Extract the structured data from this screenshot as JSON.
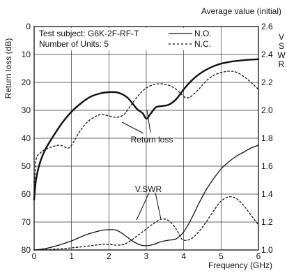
{
  "chart_data": {
    "type": "line",
    "title": "Average value (initial)",
    "xlabel": "Frequency (GHz)",
    "ylabel_left": "Return loss (dB)",
    "ylabel_right": "V.SWR",
    "xlim": [
      0,
      6
    ],
    "ylim_left": [
      80,
      0
    ],
    "ylim_right": [
      1.0,
      2.6
    ],
    "x_ticks": [
      "0",
      "1",
      "2",
      "3",
      "4",
      "5",
      "6"
    ],
    "y_left_ticks": [
      "0",
      "10",
      "20",
      "30",
      "40",
      "50",
      "60",
      "70",
      "80"
    ],
    "y_right_ticks": [
      "1.0",
      "1.2",
      "1.4",
      "1.6",
      "1.8",
      "2.0",
      "2.2",
      "2.4",
      "2.6"
    ],
    "grid": true,
    "info": {
      "subject": "Test subject: G6K-2F-RF-T",
      "units": "Number of Units: 5"
    },
    "legend": [
      {
        "label": "N.O.",
        "style": "solid"
      },
      {
        "label": "N.C.",
        "style": "dashed"
      }
    ],
    "annotations": {
      "return_loss": "Return loss",
      "vswr": "V.SWR"
    },
    "series": [
      {
        "group": "Return loss",
        "axis": "left",
        "contact": "N.O.",
        "x": [
          0,
          0.05,
          0.15,
          0.3,
          0.5,
          0.75,
          1.0,
          1.25,
          1.5,
          1.75,
          2.0,
          2.25,
          2.5,
          2.75,
          2.9,
          3.0,
          3.1,
          3.25,
          3.4,
          3.6,
          3.8,
          4.0,
          4.2,
          4.4,
          4.6,
          4.8,
          5.0,
          5.25,
          5.5,
          5.75,
          6.0
        ],
        "y": [
          62,
          55,
          49,
          44,
          39.5,
          34.5,
          30.5,
          27.5,
          25.2,
          24,
          23.5,
          23.7,
          25.5,
          29.5,
          31,
          33,
          31.5,
          29,
          28.5,
          28,
          26,
          22.5,
          19.5,
          17.2,
          15.5,
          14.2,
          13.3,
          12.6,
          12.2,
          11.9,
          11.7
        ]
      },
      {
        "group": "Return loss",
        "axis": "left",
        "contact": "N.C.",
        "x": [
          0,
          0.05,
          0.15,
          0.3,
          0.5,
          0.7,
          0.9,
          1.0,
          1.2,
          1.4,
          1.6,
          1.8,
          2.0,
          2.2,
          2.4,
          2.6,
          2.8,
          3.0,
          3.2,
          3.4,
          3.6,
          3.8,
          4.0,
          4.1,
          4.2,
          4.4,
          4.6,
          4.8,
          5.0,
          5.2,
          5.4,
          5.6,
          5.8,
          6.0
        ],
        "y": [
          60,
          48,
          45.5,
          44,
          43,
          42.5,
          43.5,
          42.5,
          38,
          34.5,
          32.5,
          31.5,
          32,
          32.5,
          31.5,
          28,
          24.5,
          22,
          20.8,
          20.5,
          21,
          22.5,
          25,
          25.5,
          25,
          22.5,
          19.5,
          17.5,
          16.5,
          16,
          16.3,
          17.8,
          20,
          22.5
        ]
      },
      {
        "group": "V.SWR",
        "axis": "right",
        "contact": "N.O.",
        "x": [
          0,
          0.3,
          0.6,
          1.0,
          1.4,
          1.8,
          2.0,
          2.2,
          2.4,
          2.6,
          2.8,
          3.0,
          3.2,
          3.4,
          3.6,
          3.8,
          4.0,
          4.2,
          4.4,
          4.6,
          4.8,
          5.0,
          5.2,
          5.4,
          5.6,
          5.8,
          6.0
        ],
        "y": [
          1.0,
          1.01,
          1.03,
          1.065,
          1.11,
          1.14,
          1.145,
          1.142,
          1.11,
          1.07,
          1.04,
          1.03,
          1.04,
          1.06,
          1.07,
          1.08,
          1.13,
          1.22,
          1.33,
          1.43,
          1.51,
          1.58,
          1.63,
          1.67,
          1.7,
          1.73,
          1.75
        ]
      },
      {
        "group": "V.SWR",
        "axis": "right",
        "contact": "N.C.",
        "x": [
          0,
          0.5,
          1.0,
          1.5,
          1.8,
          2.0,
          2.2,
          2.4,
          2.6,
          2.8,
          3.0,
          3.2,
          3.4,
          3.6,
          3.8,
          3.9,
          4.0,
          4.2,
          4.4,
          4.6,
          4.8,
          5.0,
          5.2,
          5.4,
          5.6,
          5.8,
          6.0
        ],
        "y": [
          1.0,
          1.005,
          1.015,
          1.03,
          1.04,
          1.04,
          1.035,
          1.04,
          1.07,
          1.11,
          1.15,
          1.19,
          1.22,
          1.21,
          1.15,
          1.1,
          1.07,
          1.08,
          1.13,
          1.2,
          1.28,
          1.35,
          1.38,
          1.37,
          1.32,
          1.25,
          1.18
        ]
      }
    ]
  }
}
